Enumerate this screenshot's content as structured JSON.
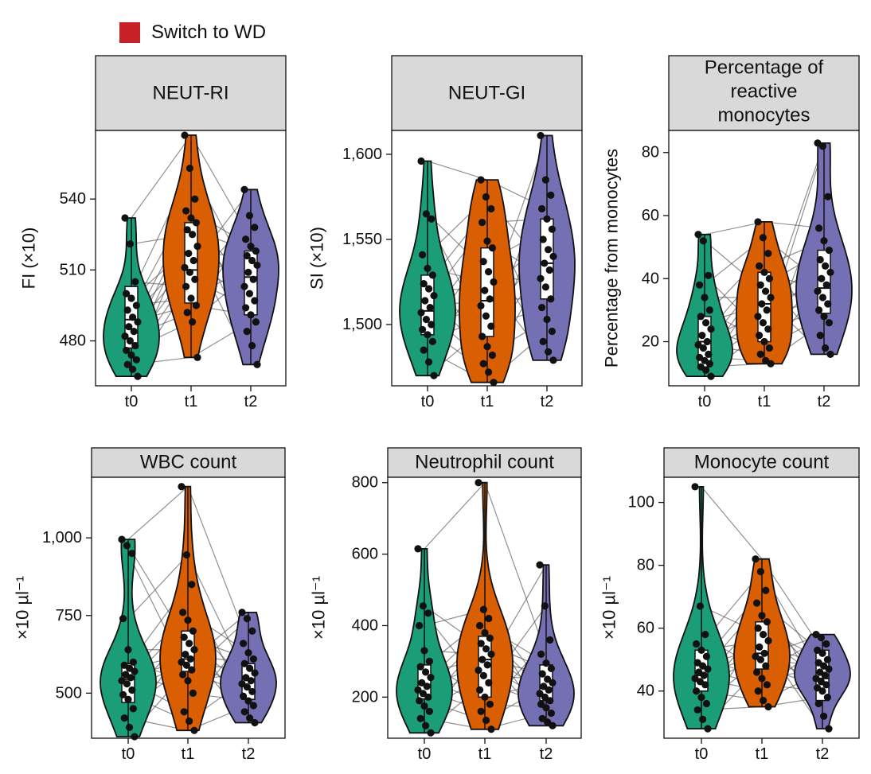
{
  "legend": {
    "label": "Switch to WD",
    "color": "#c62127"
  },
  "colors": {
    "t0": "#1b9e77",
    "t1": "#d95f02",
    "t2": "#7570b3",
    "strip": "#d9d9d9"
  },
  "chart_data": [
    {
      "type": "violin",
      "title": "NEUT-RI",
      "ylabel": "FI (×10)",
      "ylim": [
        461,
        569
      ],
      "yticks": [
        480,
        510,
        540
      ],
      "ytick_labels": [
        "480",
        "510",
        "540"
      ],
      "groups": [
        {
          "name": "t0",
          "color": "#1b9e77",
          "min": 465,
          "max": 532,
          "q1": 477,
          "median": 489,
          "q3": 503,
          "points": [
            532,
            521,
            505,
            500,
            498,
            495,
            493,
            490,
            488,
            486,
            484,
            482,
            480,
            478,
            476,
            474,
            472,
            470,
            468,
            465
          ]
        },
        {
          "name": "t1",
          "color": "#d95f02",
          "min": 473,
          "max": 567,
          "q1": 496,
          "median": 510,
          "q3": 530,
          "points": [
            567,
            553,
            540,
            535,
            532,
            530,
            527,
            525,
            520,
            517,
            514,
            511,
            509,
            506,
            503,
            498,
            495,
            492,
            488,
            473
          ]
        },
        {
          "name": "t2",
          "color": "#7570b3",
          "min": 470,
          "max": 544,
          "q1": 491,
          "median": 507,
          "q3": 518,
          "points": [
            544,
            533,
            528,
            523,
            520,
            518,
            516,
            514,
            512,
            509,
            506,
            503,
            500,
            497,
            494,
            491,
            488,
            484,
            478,
            470
          ]
        }
      ]
    },
    {
      "type": "violin",
      "title": "NEUT-GI",
      "ylabel": "SI (×10)",
      "ylim": [
        1464,
        1614
      ],
      "yticks": [
        1500,
        1550,
        1600
      ],
      "ytick_labels": [
        "1,500",
        "1,550",
        "1,600"
      ],
      "groups": [
        {
          "name": "t0",
          "color": "#1b9e77",
          "min": 1470,
          "max": 1596,
          "q1": 1494,
          "median": 1508,
          "q3": 1529,
          "points": [
            1596,
            1565,
            1562,
            1541,
            1533,
            1529,
            1524,
            1521,
            1517,
            1514,
            1510,
            1507,
            1503,
            1500,
            1497,
            1494,
            1490,
            1485,
            1478,
            1470
          ]
        },
        {
          "name": "t1",
          "color": "#d95f02",
          "min": 1466,
          "max": 1585,
          "q1": 1493,
          "median": 1514,
          "q3": 1545,
          "points": [
            1585,
            1575,
            1568,
            1560,
            1549,
            1545,
            1537,
            1531,
            1525,
            1520,
            1515,
            1511,
            1505,
            1499,
            1493,
            1487,
            1482,
            1477,
            1472,
            1466
          ]
        },
        {
          "name": "t2",
          "color": "#7570b3",
          "min": 1479,
          "max": 1611,
          "q1": 1515,
          "median": 1536,
          "q3": 1562,
          "points": [
            1611,
            1585,
            1576,
            1568,
            1562,
            1556,
            1550,
            1544,
            1540,
            1536,
            1532,
            1527,
            1522,
            1515,
            1510,
            1503,
            1496,
            1490,
            1484,
            1479
          ]
        }
      ]
    },
    {
      "type": "violin",
      "title": "Percentage of reactive monocytes",
      "title_lines": [
        "Percentage of",
        "reactive",
        "monocytes"
      ],
      "ylabel": "Percentage from monocytes",
      "ylim": [
        6,
        87
      ],
      "yticks": [
        20,
        40,
        60,
        80
      ],
      "ytick_labels": [
        "20",
        "40",
        "60",
        "80"
      ],
      "groups": [
        {
          "name": "t0",
          "color": "#1b9e77",
          "min": 9,
          "max": 54,
          "q1": 12,
          "median": 20,
          "q3": 28,
          "points": [
            54,
            52,
            41,
            38,
            34,
            30,
            28,
            26,
            24,
            22,
            20,
            19,
            18,
            16,
            15,
            14,
            13,
            12,
            11,
            9
          ]
        },
        {
          "name": "t1",
          "color": "#d95f02",
          "min": 13,
          "max": 58,
          "q1": 20,
          "median": 32,
          "q3": 42,
          "points": [
            58,
            53,
            48,
            44,
            42,
            40,
            38,
            36,
            34,
            32,
            30,
            28,
            26,
            24,
            22,
            20,
            18,
            16,
            14,
            13
          ]
        },
        {
          "name": "t2",
          "color": "#7570b3",
          "min": 16,
          "max": 83,
          "q1": 29,
          "median": 37,
          "q3": 49,
          "points": [
            83,
            82,
            66,
            56,
            52,
            49,
            46,
            44,
            42,
            40,
            38,
            36,
            34,
            32,
            30,
            28,
            26,
            22,
            18,
            16
          ]
        }
      ]
    },
    {
      "type": "violin",
      "title": "WBC count",
      "ylabel": "×10 µl⁻¹",
      "ylim": [
        355,
        1195
      ],
      "yticks": [
        500,
        750,
        1000
      ],
      "ytick_labels": [
        "500",
        "750",
        "1,000"
      ],
      "groups": [
        {
          "name": "t0",
          "color": "#1b9e77",
          "min": 360,
          "max": 995,
          "q1": 470,
          "median": 545,
          "q3": 595,
          "points": [
            995,
            975,
            950,
            740,
            640,
            600,
            590,
            580,
            570,
            560,
            550,
            540,
            530,
            510,
            495,
            480,
            450,
            420,
            390,
            360
          ]
        },
        {
          "name": "t1",
          "color": "#d95f02",
          "min": 380,
          "max": 1165,
          "q1": 570,
          "median": 610,
          "q3": 700,
          "points": [
            1165,
            945,
            850,
            760,
            735,
            700,
            680,
            660,
            640,
            625,
            610,
            600,
            590,
            575,
            560,
            540,
            500,
            440,
            410,
            380
          ]
        },
        {
          "name": "t2",
          "color": "#7570b3",
          "min": 405,
          "max": 760,
          "q1": 480,
          "median": 545,
          "q3": 595,
          "points": [
            760,
            740,
            700,
            660,
            630,
            610,
            595,
            580,
            565,
            550,
            540,
            530,
            520,
            505,
            490,
            475,
            460,
            440,
            420,
            405
          ]
        }
      ]
    },
    {
      "type": "violin",
      "title": "Neutrophil count",
      "ylabel": "×10 µl⁻¹",
      "ylim": [
        85,
        815
      ],
      "yticks": [
        200,
        400,
        600,
        800
      ],
      "ytick_labels": [
        "200",
        "400",
        "600",
        "800"
      ],
      "groups": [
        {
          "name": "t0",
          "color": "#1b9e77",
          "min": 100,
          "max": 615,
          "q1": 195,
          "median": 235,
          "q3": 290,
          "points": [
            615,
            455,
            435,
            400,
            330,
            300,
            285,
            270,
            255,
            240,
            230,
            220,
            210,
            200,
            190,
            175,
            160,
            140,
            120,
            100
          ]
        },
        {
          "name": "t1",
          "color": "#d95f02",
          "min": 110,
          "max": 800,
          "q1": 200,
          "median": 305,
          "q3": 370,
          "points": [
            800,
            445,
            420,
            400,
            380,
            365,
            350,
            335,
            320,
            305,
            290,
            275,
            260,
            240,
            220,
            200,
            180,
            160,
            135,
            110
          ]
        },
        {
          "name": "t2",
          "color": "#7570b3",
          "min": 120,
          "max": 570,
          "q1": 190,
          "median": 225,
          "q3": 290,
          "points": [
            570,
            455,
            360,
            320,
            295,
            280,
            265,
            250,
            240,
            230,
            220,
            210,
            200,
            190,
            180,
            170,
            155,
            140,
            130,
            120
          ]
        }
      ]
    },
    {
      "type": "violin",
      "title": "Monocyte count",
      "ylabel": "×10 µl⁻¹",
      "ylim": [
        25,
        108
      ],
      "yticks": [
        40,
        60,
        80,
        100
      ],
      "ytick_labels": [
        "40",
        "60",
        "80",
        "100"
      ],
      "groups": [
        {
          "name": "t0",
          "color": "#1b9e77",
          "min": 28,
          "max": 105,
          "q1": 40,
          "median": 45,
          "q3": 53,
          "points": [
            105,
            67,
            58,
            55,
            53,
            51,
            49,
            48,
            47,
            46,
            45,
            44,
            43,
            42,
            40,
            38,
            36,
            34,
            31,
            28
          ]
        },
        {
          "name": "t1",
          "color": "#d95f02",
          "min": 35,
          "max": 82,
          "q1": 47,
          "median": 52,
          "q3": 62,
          "points": [
            82,
            78,
            72,
            68,
            64,
            62,
            60,
            58,
            56,
            54,
            52,
            51,
            50,
            48,
            46,
            44,
            42,
            40,
            37,
            35
          ]
        },
        {
          "name": "t2",
          "color": "#7570b3",
          "min": 28,
          "max": 58,
          "q1": 37,
          "median": 44,
          "q3": 53,
          "points": [
            58,
            57,
            55,
            53,
            52,
            50,
            49,
            48,
            47,
            46,
            45,
            44,
            43,
            42,
            41,
            40,
            38,
            36,
            32,
            28
          ]
        }
      ]
    }
  ]
}
